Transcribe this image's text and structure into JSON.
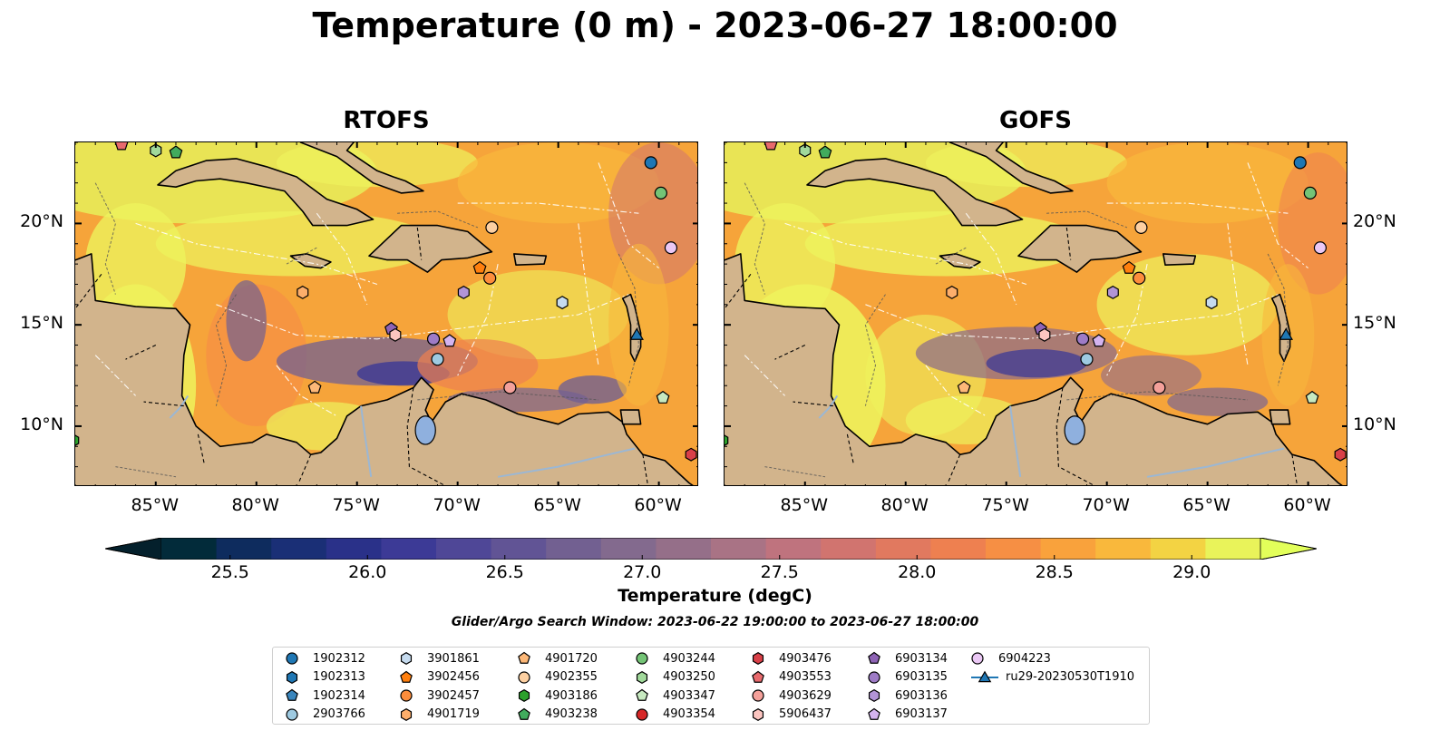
{
  "title": "Temperature (0 m) - 2023-06-27 18:00:00",
  "panels": [
    {
      "title": "RTOFS"
    },
    {
      "title": "GOFS"
    }
  ],
  "map": {
    "lon_range": [
      -89,
      -58
    ],
    "lat_range": [
      7,
      24
    ],
    "x_ticks": [
      "85°W",
      "80°W",
      "75°W",
      "70°W",
      "65°W",
      "60°W"
    ],
    "x_tick_values": [
      -85,
      -80,
      -75,
      -70,
      -65,
      -60
    ],
    "y_ticks": [
      "20°N",
      "15°N",
      "10°N"
    ],
    "y_tick_values": [
      20,
      15,
      10
    ],
    "land_color": "#d2b48c",
    "lake_color": "#8fb0de"
  },
  "colorbar": {
    "min": 25.25,
    "max": 29.25,
    "step": 0.25,
    "tick_values": [
      25.5,
      26.0,
      26.5,
      27.0,
      27.5,
      28.0,
      28.5,
      29.0
    ],
    "tick_labels": [
      "25.5",
      "26.0",
      "26.5",
      "27.0",
      "27.5",
      "28.0",
      "28.5",
      "29.0"
    ],
    "label": "Temperature (degC)",
    "colors": [
      "#022b3a",
      "#0e2c5e",
      "#1a2f76",
      "#2a3189",
      "#3c3a96",
      "#4f4797",
      "#615495",
      "#726091",
      "#836a8e",
      "#956f89",
      "#a97385",
      "#bf737e",
      "#d1746f",
      "#e1795f",
      "#ee8050",
      "#f68f44",
      "#f9a23c",
      "#f9b83c",
      "#f3d343",
      "#e9f35a"
    ],
    "min_color": "#04202c",
    "max_color": "#e3ff5a"
  },
  "search_window": "Glider/Argo Search Window: 2023-06-22 19:00:00 to 2023-06-27 18:00:00",
  "legend": {
    "entries": [
      {
        "label": "1902312",
        "marker": "circle",
        "color": "#1f77b4"
      },
      {
        "label": "1902313",
        "marker": "hexagon",
        "color": "#1f77b4"
      },
      {
        "label": "1902314",
        "marker": "pentagon",
        "color": "#3a86bd"
      },
      {
        "label": "2903766",
        "marker": "circle",
        "color": "#9ecae1"
      },
      {
        "label": "3901861",
        "marker": "hexagon",
        "color": "#c6dbef"
      },
      {
        "label": "3902456",
        "marker": "pentagon",
        "color": "#ff7f0e"
      },
      {
        "label": "3902457",
        "marker": "circle",
        "color": "#fd8d3c"
      },
      {
        "label": "4901719",
        "marker": "hexagon",
        "color": "#fdae6b"
      },
      {
        "label": "4901720",
        "marker": "pentagon",
        "color": "#fdb878"
      },
      {
        "label": "4902355",
        "marker": "circle",
        "color": "#fdd0a2"
      },
      {
        "label": "4903186",
        "marker": "hexagon",
        "color": "#2ca02c"
      },
      {
        "label": "4903238",
        "marker": "pentagon",
        "color": "#41ab5d"
      },
      {
        "label": "4903244",
        "marker": "circle",
        "color": "#74c476"
      },
      {
        "label": "4903250",
        "marker": "hexagon",
        "color": "#a1d99b"
      },
      {
        "label": "4903347",
        "marker": "pentagon",
        "color": "#c7e9c0"
      },
      {
        "label": "4903354",
        "marker": "circle",
        "color": "#d62728"
      },
      {
        "label": "4903476",
        "marker": "hexagon",
        "color": "#d94048"
      },
      {
        "label": "4903553",
        "marker": "pentagon",
        "color": "#e86a6d"
      },
      {
        "label": "4903629",
        "marker": "circle",
        "color": "#f4a09a"
      },
      {
        "label": "5906437",
        "marker": "hexagon",
        "color": "#fcc5c0"
      },
      {
        "label": "6903134",
        "marker": "pentagon",
        "color": "#8e63b5"
      },
      {
        "label": "6903135",
        "marker": "circle",
        "color": "#9e7bc6"
      },
      {
        "label": "6903136",
        "marker": "hexagon",
        "color": "#b294d6"
      },
      {
        "label": "6903137",
        "marker": "pentagon",
        "color": "#d4b3ef"
      },
      {
        "label": "6904223",
        "marker": "circle",
        "color": "#ebc8f5"
      },
      {
        "label": "ru29-20230530T1910",
        "marker": "glider",
        "color": "#1f77b4"
      }
    ]
  },
  "markers": [
    {
      "id": "1902312",
      "lon": -60.4,
      "lat": 23.0
    },
    {
      "id": "4903244",
      "lon": -59.9,
      "lat": 21.5
    },
    {
      "id": "6904223",
      "lon": -59.4,
      "lat": 18.8
    },
    {
      "id": "4902355",
      "lon": -68.3,
      "lat": 19.8
    },
    {
      "id": "3902456",
      "lon": -68.9,
      "lat": 17.8
    },
    {
      "id": "3902457",
      "lon": -68.4,
      "lat": 17.3
    },
    {
      "id": "3901861",
      "lon": -64.8,
      "lat": 16.1
    },
    {
      "id": "6903136",
      "lon": -69.7,
      "lat": 16.6
    },
    {
      "id": "4901719",
      "lon": -77.7,
      "lat": 16.6
    },
    {
      "id": "6903134",
      "lon": -73.3,
      "lat": 14.8
    },
    {
      "id": "5906437",
      "lon": -73.1,
      "lat": 14.5
    },
    {
      "id": "6903135",
      "lon": -71.2,
      "lat": 14.3
    },
    {
      "id": "6903137",
      "lon": -70.4,
      "lat": 14.2
    },
    {
      "id": "2903766",
      "lon": -71.0,
      "lat": 13.3
    },
    {
      "id": "4901720",
      "lon": -77.1,
      "lat": 11.9
    },
    {
      "id": "4903629",
      "lon": -67.4,
      "lat": 11.9
    },
    {
      "id": "4903347",
      "lon": -59.8,
      "lat": 11.4
    },
    {
      "id": "4903250",
      "lon": -85.0,
      "lat": 23.6
    },
    {
      "id": "4903238",
      "lon": -84.0,
      "lat": 23.5
    },
    {
      "id": "4903553",
      "lon": -86.7,
      "lat": 23.9
    },
    {
      "id": "4903476",
      "lon": -58.4,
      "lat": 8.6
    },
    {
      "id": "4903186",
      "lon": -89.1,
      "lat": 9.3
    },
    {
      "id": "ru29-20230530T1910",
      "lon": -61.1,
      "lat": 14.5
    }
  ]
}
